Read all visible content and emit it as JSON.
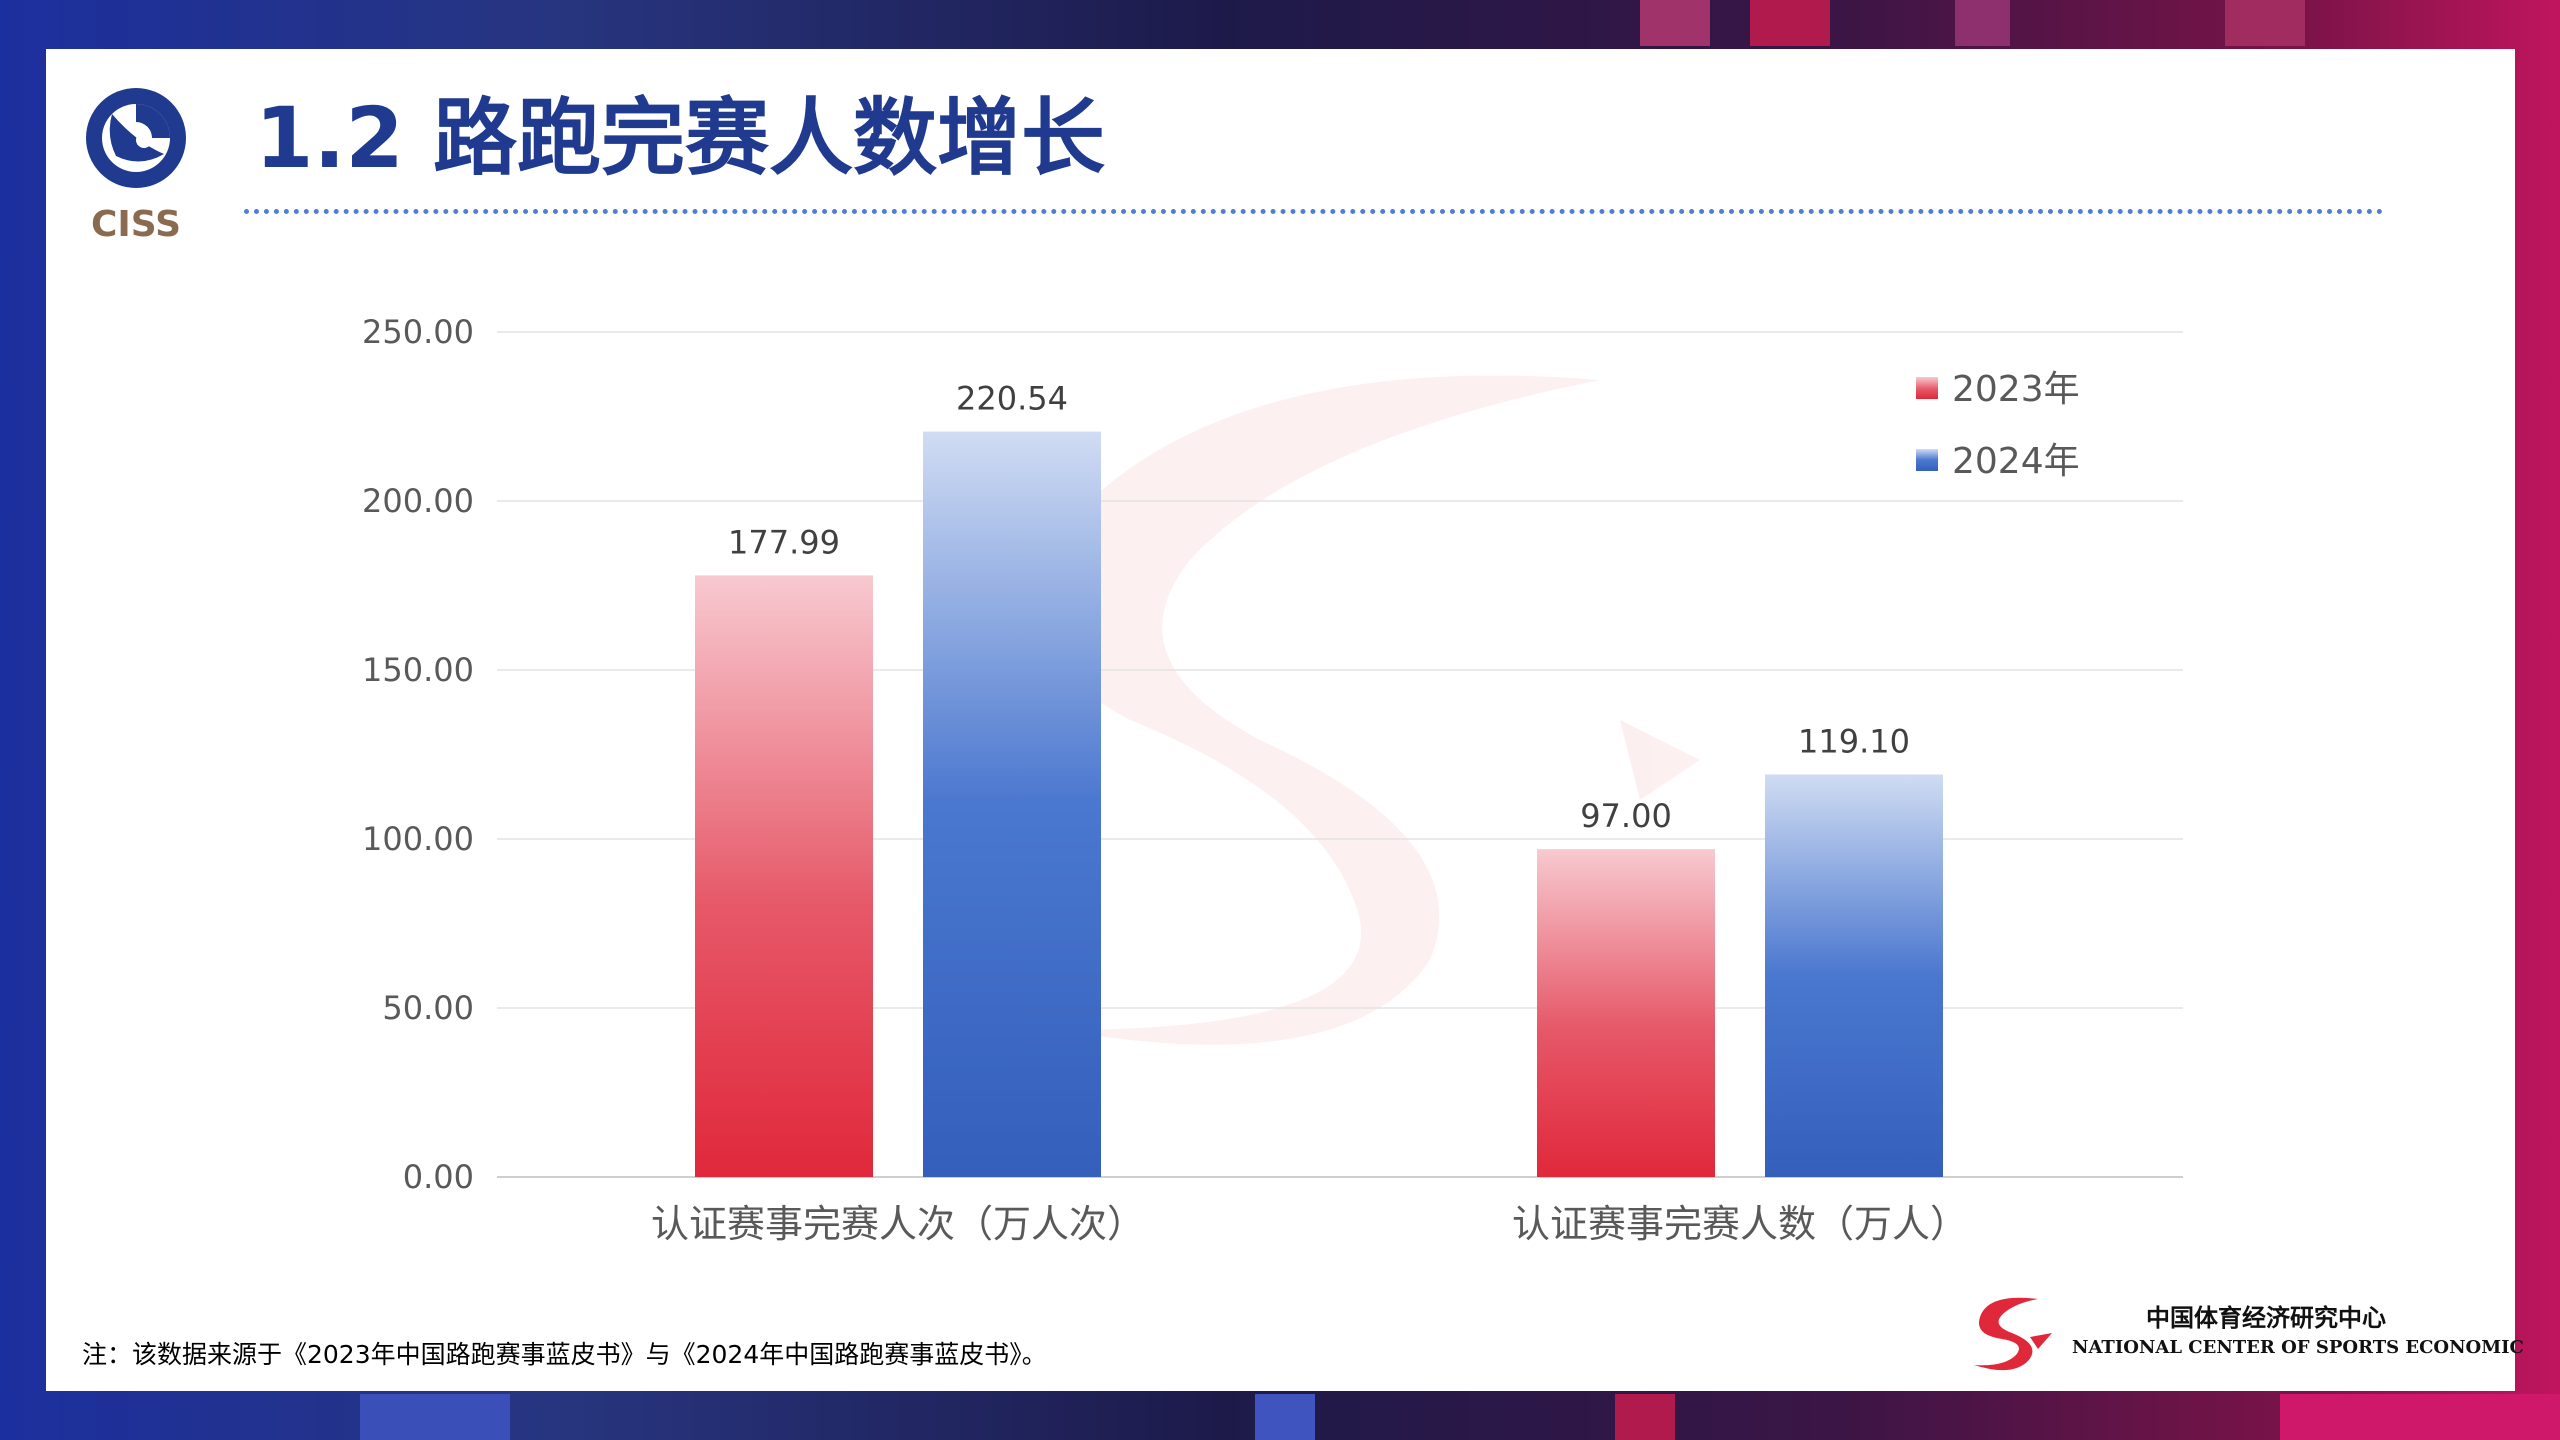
{
  "header": {
    "title": "1.2 路跑完赛人数增长",
    "logo_text": "CISS"
  },
  "chart_data": {
    "type": "bar",
    "categories": [
      "认证赛事完赛人次（万人次）",
      "认证赛事完赛人数（万人）"
    ],
    "series": [
      {
        "name": "2023年",
        "values": [
          177.99,
          97.0
        ],
        "color": "#e0283b"
      },
      {
        "name": "2024年",
        "values": [
          220.54,
          119.1
        ],
        "color": "#3966c2"
      }
    ],
    "data_labels": [
      [
        "177.99",
        "97.00"
      ],
      [
        "220.54",
        "119.10"
      ]
    ],
    "y_ticks": [
      "0.00",
      "50.00",
      "100.00",
      "150.00",
      "200.00",
      "250.00"
    ],
    "ylim": [
      0,
      250
    ],
    "grid": true,
    "legend_position": "top-right",
    "watermark": "中国体育经济研究中心 NATIONAL CENTER OF SPORTS ECONOMIC"
  },
  "footer": {
    "note": "注：该数据来源于《2023年中国路跑赛事蓝皮书》与《2024年中国路跑赛事蓝皮书》。",
    "org_cn": "中国体育经济研究中心",
    "org_en": "NATIONAL CENTER OF SPORTS ECONOMIC"
  },
  "colors": {
    "title": "#1f3a8f",
    "accent_red": "#e0283b",
    "accent_blue": "#3966c2",
    "logo_brown": "#8a6b4f"
  },
  "icons": {
    "ciss_logo": "ciss-logo-icon",
    "org_logo": "sports-center-logo-icon"
  }
}
